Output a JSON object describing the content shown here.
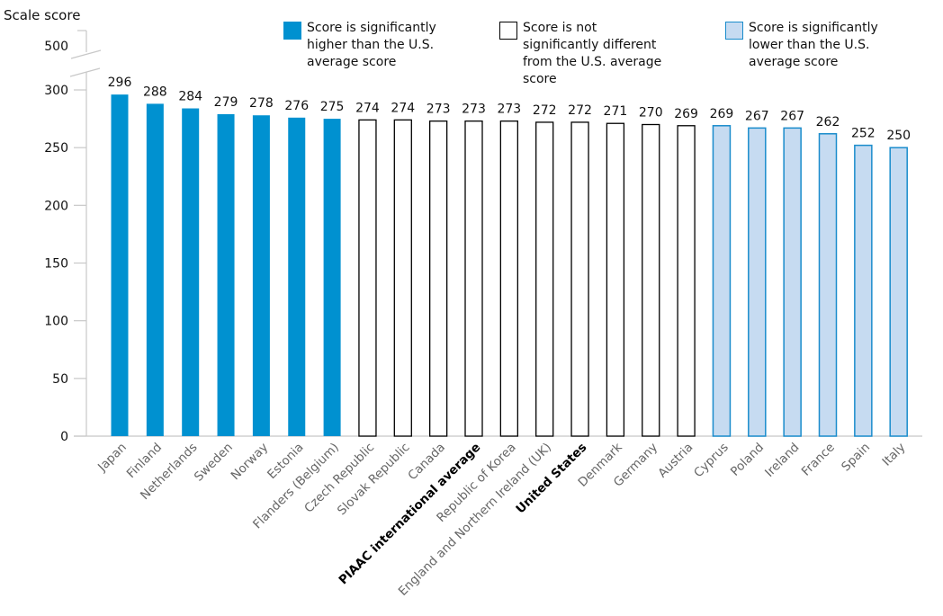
{
  "chart_data": {
    "type": "bar",
    "title": "",
    "ylabel": "Scale score",
    "xlabel": "",
    "ylim": [
      0,
      300
    ],
    "axis_break": {
      "upper_tick": 500
    },
    "yticks": [
      0,
      50,
      100,
      150,
      200,
      250,
      300
    ],
    "grid": false,
    "categories": [
      "Japan",
      "Finland",
      "Netherlands",
      "Sweden",
      "Norway",
      "Estonia",
      "Flanders (Belgium)",
      "Czech Republic",
      "Slovak Republic",
      "Canada",
      "PIAAC international average",
      "Republic of Korea",
      "England and Northern Ireland (UK)",
      "United States",
      "Denmark",
      "Germany",
      "Austria",
      "Cyprus",
      "Poland",
      "Ireland",
      "France",
      "Spain",
      "Italy"
    ],
    "values": [
      296,
      288,
      284,
      279,
      278,
      276,
      275,
      274,
      274,
      273,
      273,
      273,
      272,
      272,
      271,
      270,
      269,
      269,
      267,
      267,
      262,
      252,
      250
    ],
    "groups": [
      "higher",
      "higher",
      "higher",
      "higher",
      "higher",
      "higher",
      "higher",
      "same",
      "same",
      "same",
      "same",
      "same",
      "same",
      "same",
      "same",
      "same",
      "same",
      "lower",
      "lower",
      "lower",
      "lower",
      "lower",
      "lower"
    ],
    "bold_categories": [
      "PIAAC international average",
      "United States"
    ],
    "legend": [
      {
        "key": "higher",
        "label": "Score is significantly\nhigher than the U.S.\naverage score",
        "fill": "#0091d0",
        "stroke": "#0091d0"
      },
      {
        "key": "same",
        "label": "Score is not\nsignificantly different\nfrom the U.S. average\nscore",
        "fill": "#ffffff",
        "stroke": "#000000"
      },
      {
        "key": "lower",
        "label": "Score is significantly\nlower than the U.S.\naverage score",
        "fill": "#c6dbf1",
        "stroke": "#1a8ccc"
      }
    ],
    "legend_position": "top"
  }
}
